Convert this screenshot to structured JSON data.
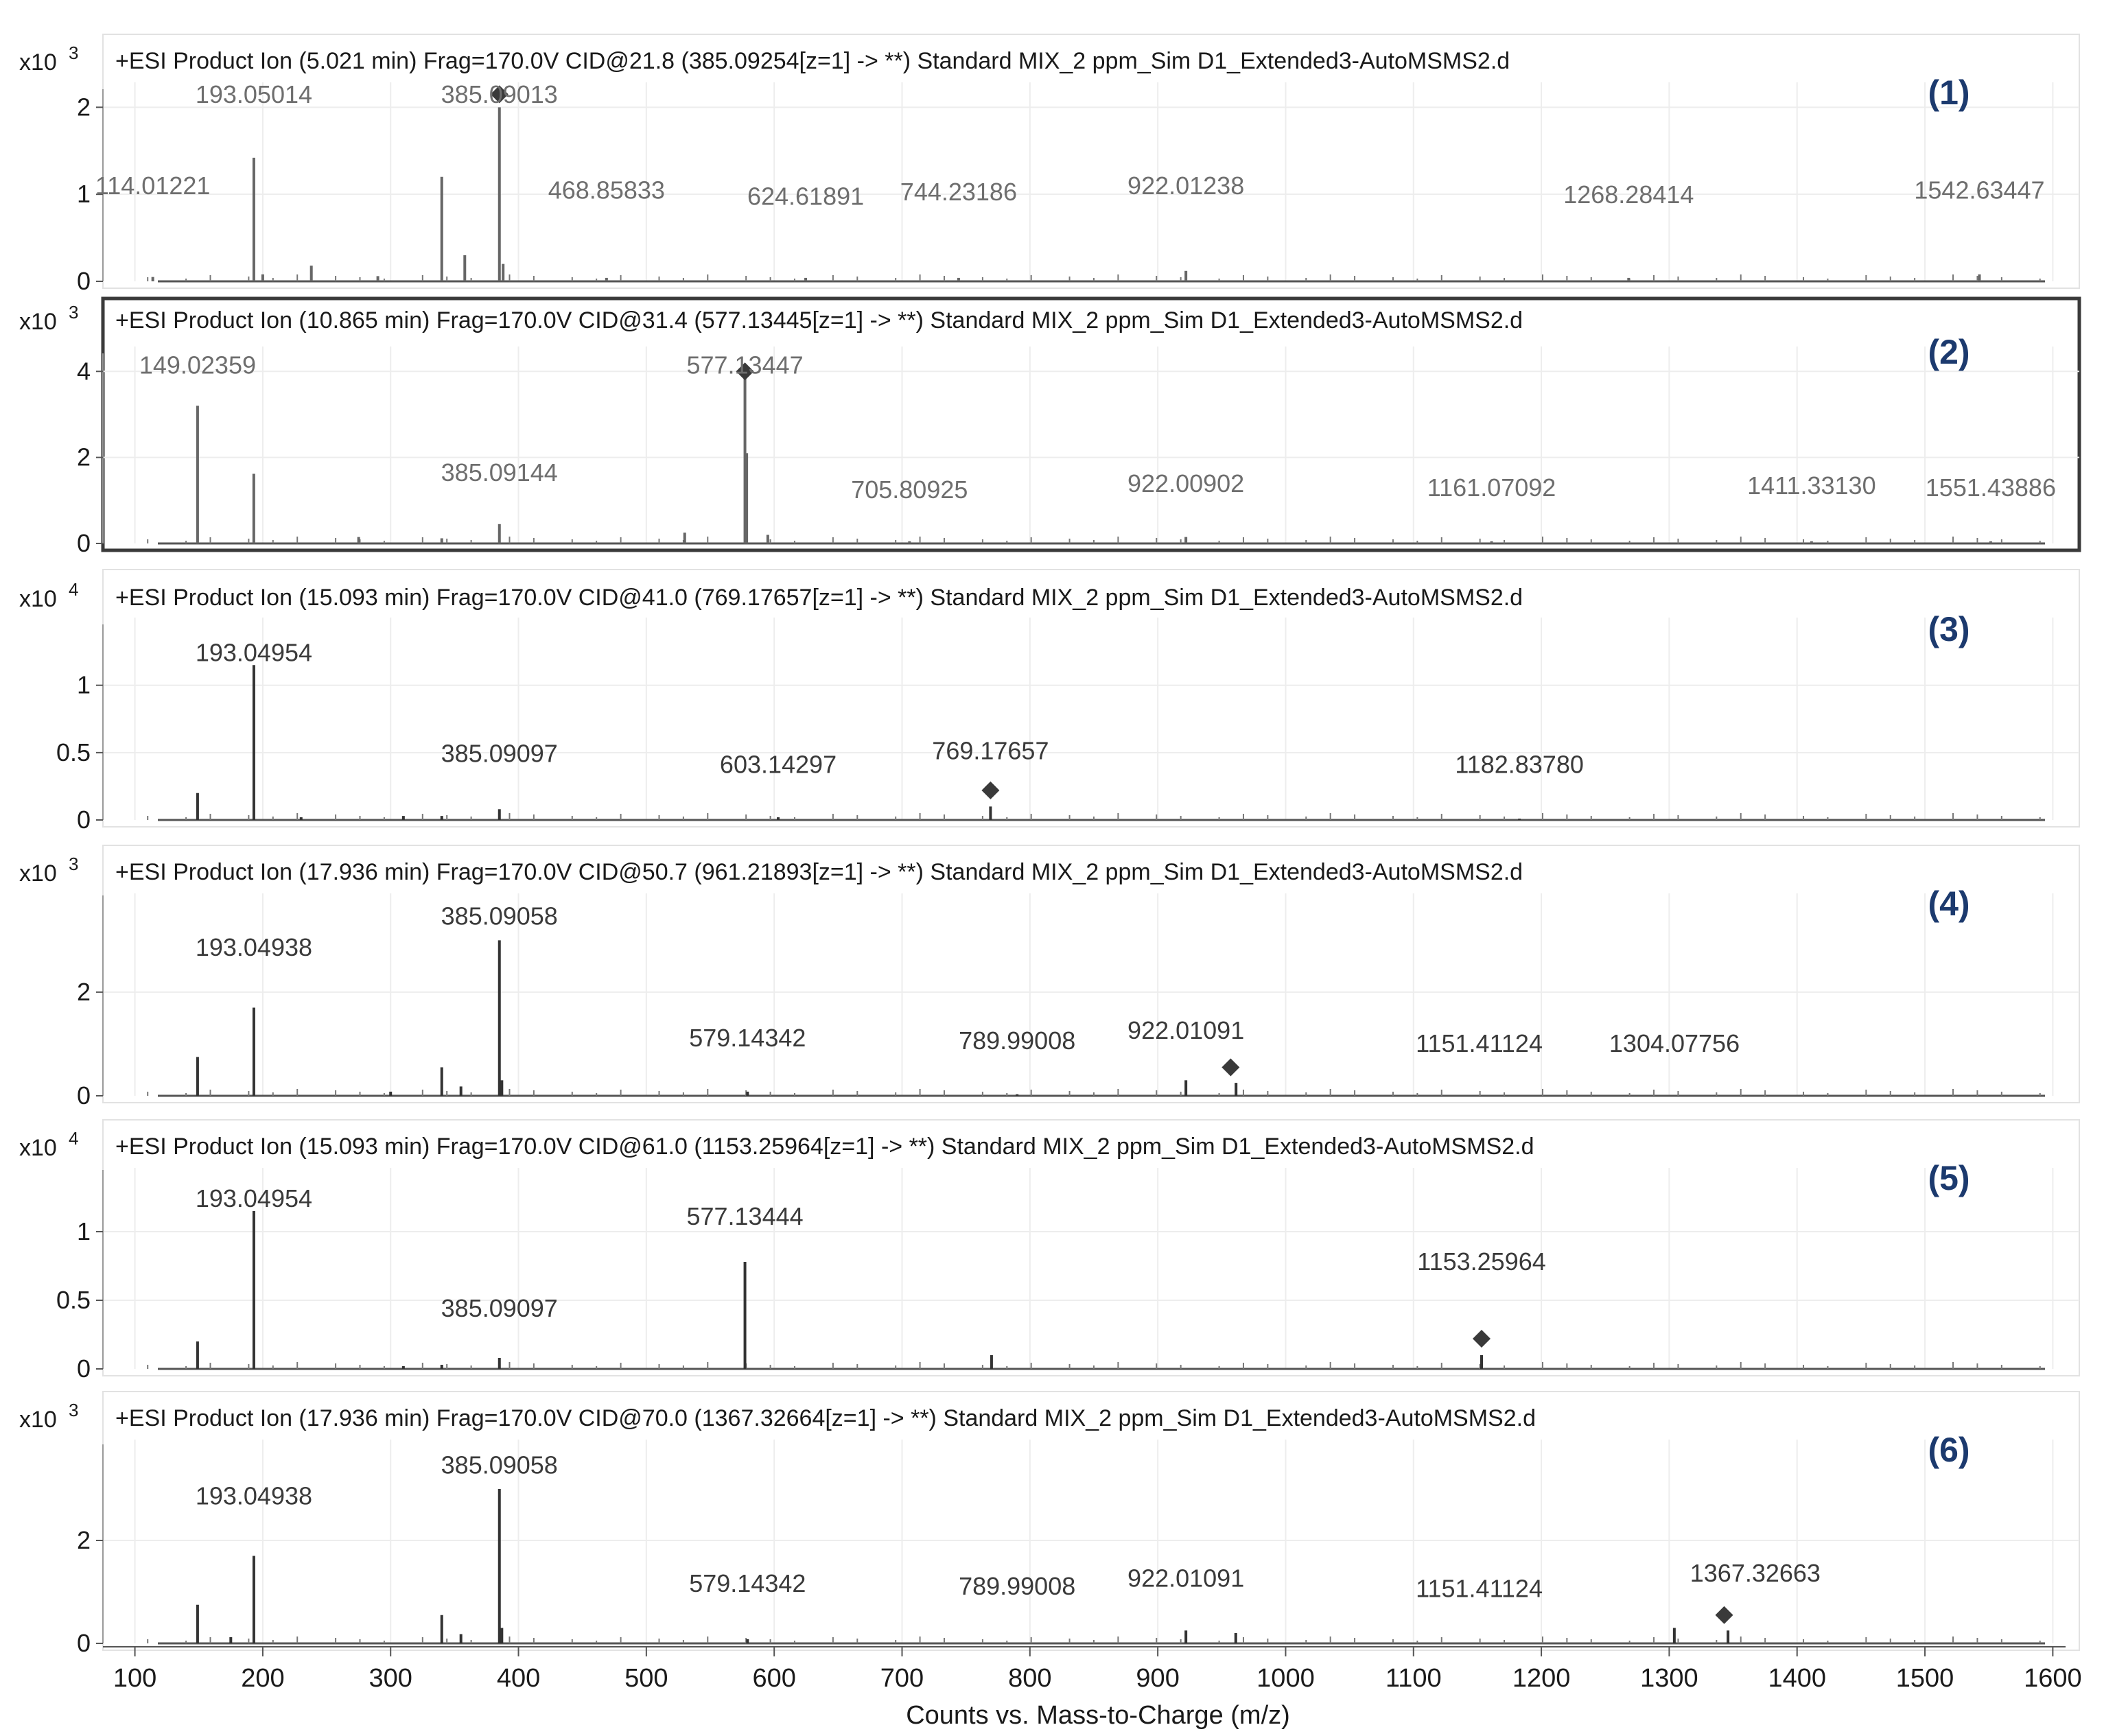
{
  "chart_data": {
    "type": "bar",
    "subtype": "mass-spectrum-stack",
    "xlabel": "Counts vs. Mass-to-Charge (m/z)",
    "xlim": [
      75,
      1610
    ],
    "xticks": [
      100,
      200,
      300,
      400,
      500,
      600,
      700,
      800,
      900,
      1000,
      1100,
      1200,
      1300,
      1400,
      1500,
      1600
    ],
    "grid": true,
    "panels": [
      {
        "id": "(1)",
        "title": "+ESI Product Ion (5.021 min) Frag=170.0V CID@21.8 (385.09254[z=1] -> **) Standard MIX_2 ppm_Sim D1_Extended3-AutoMSMS2.d",
        "scale_label": "x10",
        "scale_exp": "3",
        "ylim": [
          0,
          2.05
        ],
        "yticks": [
          0,
          1,
          2
        ],
        "ytick_labels": [
          "0",
          "1",
          "2"
        ],
        "peaks": [
          {
            "mz": 114.0,
            "y": 0.05
          },
          {
            "mz": 193.05,
            "y": 1.42
          },
          {
            "mz": 200,
            "y": 0.08
          },
          {
            "mz": 238,
            "y": 0.18
          },
          {
            "mz": 290,
            "y": 0.06
          },
          {
            "mz": 340,
            "y": 1.2
          },
          {
            "mz": 358,
            "y": 0.3
          },
          {
            "mz": 385.09,
            "y": 2.0
          },
          {
            "mz": 388,
            "y": 0.2
          },
          {
            "mz": 468.86,
            "y": 0.04
          },
          {
            "mz": 624.62,
            "y": 0.04
          },
          {
            "mz": 744.23,
            "y": 0.04
          },
          {
            "mz": 922.01,
            "y": 0.12
          },
          {
            "mz": 1268.28,
            "y": 0.04
          },
          {
            "mz": 1542.63,
            "y": 0.08
          }
        ],
        "precursor_marker": {
          "mz": 385.09,
          "y": 2.15
        },
        "labels": [
          {
            "text": "193.05014",
            "mz": 193.05,
            "y": 2.05
          },
          {
            "text": "385.09013",
            "mz": 385.09,
            "y": 2.05
          },
          {
            "text": "114.01221",
            "mz": 114.0,
            "y": 1.0
          },
          {
            "text": "468.85833",
            "mz": 468.86,
            "y": 0.95
          },
          {
            "text": "624.61891",
            "mz": 624.62,
            "y": 0.88
          },
          {
            "text": "744.23186",
            "mz": 744.23,
            "y": 0.93
          },
          {
            "text": "922.01238",
            "mz": 922.01,
            "y": 1.0
          },
          {
            "text": "1268.28414",
            "mz": 1268.28,
            "y": 0.9
          },
          {
            "text": "1542.63447",
            "mz": 1542.63,
            "y": 0.95
          }
        ]
      },
      {
        "id": "(2)",
        "title": "+ESI Product Ion (10.865 min) Frag=170.0V CID@31.4 (577.13445[z=1] -> **) Standard MIX_2 ppm_Sim D1_Extended3-AutoMSMS2.d",
        "scale_label": "x10",
        "scale_exp": "3",
        "ylim": [
          0,
          4.1
        ],
        "yticks": [
          0,
          2,
          4
        ],
        "ytick_labels": [
          "0",
          "2",
          "4"
        ],
        "peaks": [
          {
            "mz": 149.02,
            "y": 3.2
          },
          {
            "mz": 193.0,
            "y": 1.62
          },
          {
            "mz": 275,
            "y": 0.15
          },
          {
            "mz": 340,
            "y": 0.12
          },
          {
            "mz": 385.09,
            "y": 0.45
          },
          {
            "mz": 530,
            "y": 0.25
          },
          {
            "mz": 577.13,
            "y": 3.9
          },
          {
            "mz": 578.5,
            "y": 2.1
          },
          {
            "mz": 595,
            "y": 0.2
          },
          {
            "mz": 705.81,
            "y": 0.05
          },
          {
            "mz": 922.0,
            "y": 0.15
          },
          {
            "mz": 1161.07,
            "y": 0.05
          },
          {
            "mz": 1411.33,
            "y": 0.05
          },
          {
            "mz": 1551.44,
            "y": 0.05
          }
        ],
        "precursor_marker": {
          "mz": 577.13,
          "y": 4.0
        },
        "labels": [
          {
            "text": "149.02359",
            "mz": 149.02,
            "y": 3.95
          },
          {
            "text": "577.13447",
            "mz": 577.13,
            "y": 3.95
          },
          {
            "text": "385.09144",
            "mz": 385.09,
            "y": 1.45
          },
          {
            "text": "705.80925",
            "mz": 705.81,
            "y": 1.05
          },
          {
            "text": "922.00902",
            "mz": 922.0,
            "y": 1.2
          },
          {
            "text": "1161.07092",
            "mz": 1161.07,
            "y": 1.1
          },
          {
            "text": "1411.33130",
            "mz": 1411.33,
            "y": 1.15
          },
          {
            "text": "1551.43886",
            "mz": 1551.44,
            "y": 1.1
          }
        ]
      },
      {
        "id": "(3)",
        "title": "+ESI Product Ion (15.093 min) Frag=170.0V CID@41.0 (769.17657[z=1] -> **) Standard MIX_2 ppm_Sim D1_Extended3-AutoMSMS2.d",
        "scale_label": "x10",
        "scale_exp": "4",
        "ylim": [
          0,
          1.35
        ],
        "yticks": [
          0,
          0.5,
          1
        ],
        "ytick_labels": [
          "0",
          "0.5",
          "1"
        ],
        "peaks": [
          {
            "mz": 149.02,
            "y": 0.2
          },
          {
            "mz": 193.05,
            "y": 1.15
          },
          {
            "mz": 230,
            "y": 0.02
          },
          {
            "mz": 310,
            "y": 0.03
          },
          {
            "mz": 340,
            "y": 0.03
          },
          {
            "mz": 385.09,
            "y": 0.08
          },
          {
            "mz": 603.14,
            "y": 0.02
          },
          {
            "mz": 769.18,
            "y": 0.1
          },
          {
            "mz": 1182.84,
            "y": 0.01
          }
        ],
        "precursor_marker": {
          "mz": 769.18,
          "y": 0.22
        },
        "labels": [
          {
            "text": "193.04954",
            "mz": 193.05,
            "y": 1.18
          },
          {
            "text": "385.09097",
            "mz": 385.09,
            "y": 0.43
          },
          {
            "text": "603.14297",
            "mz": 603.14,
            "y": 0.35
          },
          {
            "text": "769.17657",
            "mz": 769.18,
            "y": 0.45
          },
          {
            "text": "1182.83780",
            "mz": 1182.84,
            "y": 0.35
          }
        ]
      },
      {
        "id": "(4)",
        "title": "+ESI Product Ion (17.936 min) Frag=170.0V CID@50.7 (961.21893[z=1] -> **) Standard MIX_2 ppm_Sim D1_Extended3-AutoMSMS2.d",
        "scale_label": "x10",
        "scale_exp": "3",
        "ylim": [
          0,
          3.6
        ],
        "yticks": [
          0,
          2
        ],
        "ytick_labels": [
          "0",
          "2"
        ],
        "peaks": [
          {
            "mz": 149.02,
            "y": 0.75
          },
          {
            "mz": 193.05,
            "y": 1.7
          },
          {
            "mz": 300,
            "y": 0.08
          },
          {
            "mz": 340,
            "y": 0.55
          },
          {
            "mz": 355,
            "y": 0.18
          },
          {
            "mz": 385.09,
            "y": 3.0
          },
          {
            "mz": 387,
            "y": 0.3
          },
          {
            "mz": 579.14,
            "y": 0.08
          },
          {
            "mz": 790,
            "y": 0.03
          },
          {
            "mz": 922.01,
            "y": 0.3
          },
          {
            "mz": 961.22,
            "y": 0.25
          }
        ],
        "precursor_marker": {
          "mz": 957,
          "y": 0.55
        },
        "labels": [
          {
            "text": "193.04938",
            "mz": 193.05,
            "y": 2.7
          },
          {
            "text": "385.09058",
            "mz": 385.09,
            "y": 3.3
          },
          {
            "text": "579.14342",
            "mz": 579.14,
            "y": 0.95
          },
          {
            "text": "789.99008",
            "mz": 789.99,
            "y": 0.9
          },
          {
            "text": "922.01091",
            "mz": 922.01,
            "y": 1.1
          },
          {
            "text": "1151.41124",
            "mz": 1151.41,
            "y": 0.85
          },
          {
            "text": "1304.07756",
            "mz": 1304.08,
            "y": 0.85
          }
        ]
      },
      {
        "id": "(5)",
        "title": "+ESI Product Ion (15.093 min) Frag=170.0V CID@61.0 (1153.25964[z=1] -> **) Standard MIX_2 ppm_Sim D1_Extended3-AutoMSMS2.d",
        "scale_label": "x10",
        "scale_exp": "4",
        "ylim": [
          0,
          1.35
        ],
        "yticks": [
          0,
          0.5,
          1
        ],
        "ytick_labels": [
          "0",
          "0.5",
          "1"
        ],
        "peaks": [
          {
            "mz": 149.02,
            "y": 0.2
          },
          {
            "mz": 193.05,
            "y": 1.15
          },
          {
            "mz": 310,
            "y": 0.02
          },
          {
            "mz": 340,
            "y": 0.03
          },
          {
            "mz": 385.09,
            "y": 0.08
          },
          {
            "mz": 577.13,
            "y": 0.78
          },
          {
            "mz": 770,
            "y": 0.1
          },
          {
            "mz": 1153.26,
            "y": 0.1
          }
        ],
        "precursor_marker": {
          "mz": 1153.26,
          "y": 0.22
        },
        "labels": [
          {
            "text": "193.04954",
            "mz": 193.05,
            "y": 1.18
          },
          {
            "text": "577.13444",
            "mz": 577.13,
            "y": 1.05
          },
          {
            "text": "385.09097",
            "mz": 385.09,
            "y": 0.38
          },
          {
            "text": "1153.25964",
            "mz": 1153.26,
            "y": 0.72
          }
        ]
      },
      {
        "id": "(6)",
        "title": "+ESI Product Ion (17.936 min) Frag=170.0V CID@70.0 (1367.32664[z=1] -> **) Standard MIX_2 ppm_Sim D1_Extended3-AutoMSMS2.d",
        "scale_label": "x10",
        "scale_exp": "3",
        "ylim": [
          0,
          3.6
        ],
        "yticks": [
          0,
          2
        ],
        "ytick_labels": [
          "0",
          "2"
        ],
        "peaks": [
          {
            "mz": 149.02,
            "y": 0.75
          },
          {
            "mz": 175,
            "y": 0.12
          },
          {
            "mz": 193.05,
            "y": 1.7
          },
          {
            "mz": 340,
            "y": 0.55
          },
          {
            "mz": 355,
            "y": 0.18
          },
          {
            "mz": 385.09,
            "y": 3.0
          },
          {
            "mz": 387,
            "y": 0.3
          },
          {
            "mz": 579.14,
            "y": 0.08
          },
          {
            "mz": 922.01,
            "y": 0.25
          },
          {
            "mz": 961,
            "y": 0.2
          },
          {
            "mz": 1304,
            "y": 0.3
          },
          {
            "mz": 1346,
            "y": 0.25
          }
        ],
        "precursor_marker": {
          "mz": 1343,
          "y": 0.55
        },
        "labels": [
          {
            "text": "193.04938",
            "mz": 193.05,
            "y": 2.7
          },
          {
            "text": "385.09058",
            "mz": 385.09,
            "y": 3.3
          },
          {
            "text": "579.14342",
            "mz": 579.14,
            "y": 1.0
          },
          {
            "text": "789.99008",
            "mz": 789.99,
            "y": 0.95
          },
          {
            "text": "922.01091",
            "mz": 922.01,
            "y": 1.1
          },
          {
            "text": "1151.41124",
            "mz": 1151.41,
            "y": 0.9
          },
          {
            "text": "1367.32663",
            "mz": 1367.33,
            "y": 1.2
          }
        ]
      }
    ]
  }
}
